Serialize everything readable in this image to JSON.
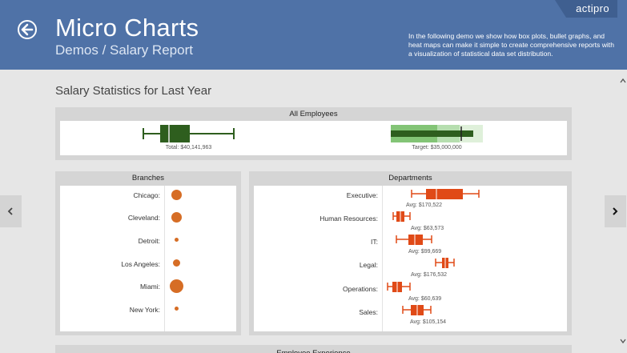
{
  "header": {
    "title": "Micro Charts",
    "subtitle": "Demos / Salary Report",
    "description": "In the following demo we show how box plots, bullet graphs, and heat maps can make it simple to create comprehensive reports with a visualization of statistical data set distribution.",
    "brand": "actipro"
  },
  "page": {
    "section_title": "Salary Statistics for Last Year"
  },
  "all_employees": {
    "title": "All Employees",
    "total_label": "Total: $40,141,963",
    "target_label": "Target: $35,000,000"
  },
  "branches": {
    "title": "Branches",
    "items": [
      {
        "name": "Chicago:"
      },
      {
        "name": "Cleveland:"
      },
      {
        "name": "Detroit:"
      },
      {
        "name": "Los Angeles:"
      },
      {
        "name": "Miami:"
      },
      {
        "name": "New York:"
      }
    ]
  },
  "departments": {
    "title": "Departments",
    "items": [
      {
        "name": "Executive:",
        "avg": "Avg: $170,522"
      },
      {
        "name": "Human Resources:",
        "avg": "Avg: $63,573"
      },
      {
        "name": "IT:",
        "avg": "Avg: $99,669"
      },
      {
        "name": "Legal:",
        "avg": "Avg: $176,532"
      },
      {
        "name": "Operations:",
        "avg": "Avg: $60,639"
      },
      {
        "name": "Sales:",
        "avg": "Avg: $105,154"
      }
    ]
  },
  "experience": {
    "title": "Employee Experience"
  },
  "colors": {
    "header": "#4f72a7",
    "box_green": "#2e5e1e",
    "band_green": "#83c476",
    "box_orange": "#e04a17",
    "bubble_orange": "#d66d25"
  }
}
